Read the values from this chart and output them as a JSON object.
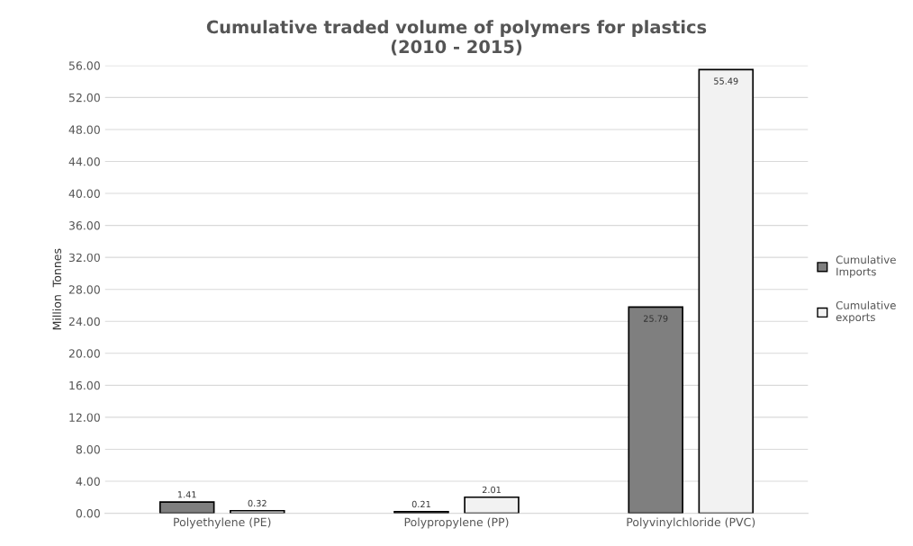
{
  "chart_data": {
    "type": "bar",
    "title": "Cumulative traded volume of polymers for plastics\n(2010 - 2015)",
    "ylabel": "Million  Tonnes",
    "categories": [
      "Polyethylene (PE)",
      "Polypropylene (PP)",
      "Polyvinylchloride (PVC)"
    ],
    "series": [
      {
        "name": "Cumulative Imports",
        "color": "#7f7f7f",
        "values": [
          1.41,
          0.21,
          25.79
        ],
        "value_labels": [
          "1.41",
          "0.21",
          "25.79"
        ]
      },
      {
        "name": "Cumulative exports",
        "color": "#f2f2f2",
        "values": [
          0.32,
          2.01,
          55.49
        ],
        "value_labels": [
          "0.32",
          "2.01",
          "55.49"
        ]
      }
    ],
    "ylim": [
      0,
      56
    ],
    "yticks": [
      {
        "value": 0,
        "label": "0.00"
      },
      {
        "value": 4,
        "label": "4.00"
      },
      {
        "value": 8,
        "label": "8.00"
      },
      {
        "value": 12,
        "label": "12.00"
      },
      {
        "value": 16,
        "label": "16.00"
      },
      {
        "value": 20,
        "label": "20.00"
      },
      {
        "value": 24,
        "label": "24.00"
      },
      {
        "value": 28,
        "label": "28.00"
      },
      {
        "value": 32,
        "label": "32.00"
      },
      {
        "value": 36,
        "label": "36.00"
      },
      {
        "value": 40,
        "label": "40.00"
      },
      {
        "value": 44,
        "label": "44.00"
      },
      {
        "value": 48,
        "label": "48.00"
      },
      {
        "value": 52,
        "label": "52.00"
      },
      {
        "value": 56,
        "label": "56.00"
      }
    ],
    "grid": "y",
    "legend": "right"
  }
}
